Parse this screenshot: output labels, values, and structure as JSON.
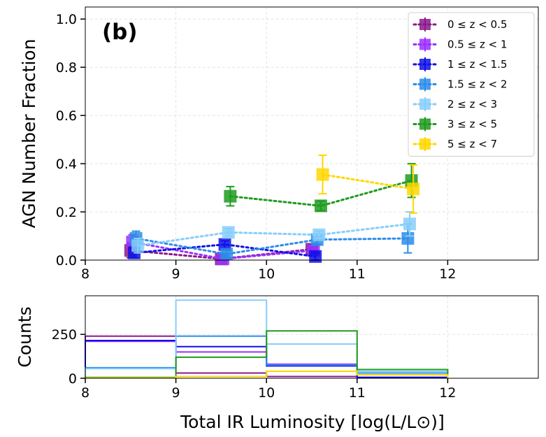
{
  "chart_data": [
    {
      "type": "scatter",
      "panel_label": "(b)",
      "xlabel": "",
      "ylabel": "AGN Number Fraction",
      "xlim": [
        8,
        13
      ],
      "ylim": [
        0,
        1.05
      ],
      "xticks": [
        "8",
        "9",
        "10",
        "11",
        "12"
      ],
      "yticks": [
        "0.0",
        "0.2",
        "0.4",
        "0.6",
        "0.8",
        "1.0"
      ],
      "grid": true,
      "legend_position": "top-right",
      "series": [
        {
          "name": "0 ≤ z < 0.5",
          "color": "#8b1a8b",
          "x": [
            8.5,
            9.5,
            10.5
          ],
          "y": [
            0.04,
            0.005,
            0.045
          ],
          "err": [
            0.03,
            0.01,
            0.02
          ]
        },
        {
          "name": "0.5 ≤ z < 1",
          "color": "#9b30ff",
          "x": [
            8.52,
            9.52,
            10.52
          ],
          "y": [
            0.075,
            0.005,
            0.04
          ],
          "err": [
            0.03,
            0.01,
            0.02
          ]
        },
        {
          "name": "1 ≤ z < 1.5",
          "color": "#1010e6",
          "x": [
            8.54,
            9.54,
            10.54
          ],
          "y": [
            0.03,
            0.065,
            0.015
          ],
          "err": [
            0.02,
            0.015,
            0.015
          ]
        },
        {
          "name": "1.5 ≤ z < 2",
          "color": "#2b8de8",
          "x": [
            8.56,
            9.56,
            10.56,
            11.56
          ],
          "y": [
            0.09,
            0.025,
            0.085,
            0.09
          ],
          "err": [
            0.03,
            0.015,
            0.02,
            0.06
          ]
        },
        {
          "name": "2 ≤ z < 3",
          "color": "#87cefa",
          "x": [
            8.58,
            9.58,
            10.58,
            11.58
          ],
          "y": [
            0.06,
            0.115,
            0.105,
            0.15
          ],
          "err": [
            0.03,
            0.015,
            0.015,
            0.05
          ]
        },
        {
          "name": "3 ≤ z < 5",
          "color": "#1e9b1e",
          "x": [
            9.6,
            10.6,
            11.6
          ],
          "y": [
            0.265,
            0.225,
            0.33
          ],
          "err": [
            0.04,
            0.02,
            0.07
          ]
        },
        {
          "name": "5 ≤ z < 7",
          "color": "#ffd700",
          "x": [
            10.62,
            11.62
          ],
          "y": [
            0.355,
            0.295
          ],
          "err": [
            0.08,
            0.1
          ]
        }
      ]
    },
    {
      "type": "histogram",
      "xlabel": "Total IR Luminosity [log(L/L⊙)]",
      "ylabel": "Counts",
      "xlim": [
        8,
        13
      ],
      "ylim": [
        0,
        470
      ],
      "xticks": [
        "8",
        "9",
        "10",
        "11",
        "12"
      ],
      "yticks": [
        "0",
        "250"
      ],
      "grid": true,
      "bins": [
        8,
        9,
        10,
        11,
        12
      ],
      "series": [
        {
          "name": "0 ≤ z < 0.5",
          "color": "#8b1a8b",
          "values": [
            240,
            30,
            10,
            5
          ]
        },
        {
          "name": "0.5 ≤ z < 1",
          "color": "#9b30ff",
          "values": [
            210,
            150,
            80,
            5
          ]
        },
        {
          "name": "1 ≤ z < 1.5",
          "color": "#1010e6",
          "values": [
            215,
            180,
            70,
            5
          ]
        },
        {
          "name": "1.5 ≤ z < 2",
          "color": "#2b8de8",
          "values": [
            60,
            240,
            75,
            30
          ]
        },
        {
          "name": "2 ≤ z < 3",
          "color": "#87cefa",
          "values": [
            55,
            445,
            195,
            40
          ]
        },
        {
          "name": "3 ≤ z < 5",
          "color": "#1e9b1e",
          "values": [
            5,
            120,
            270,
            50
          ]
        },
        {
          "name": "5 ≤ z < 7",
          "color": "#ffd700",
          "values": [
            2,
            10,
            40,
            20
          ]
        }
      ]
    }
  ]
}
